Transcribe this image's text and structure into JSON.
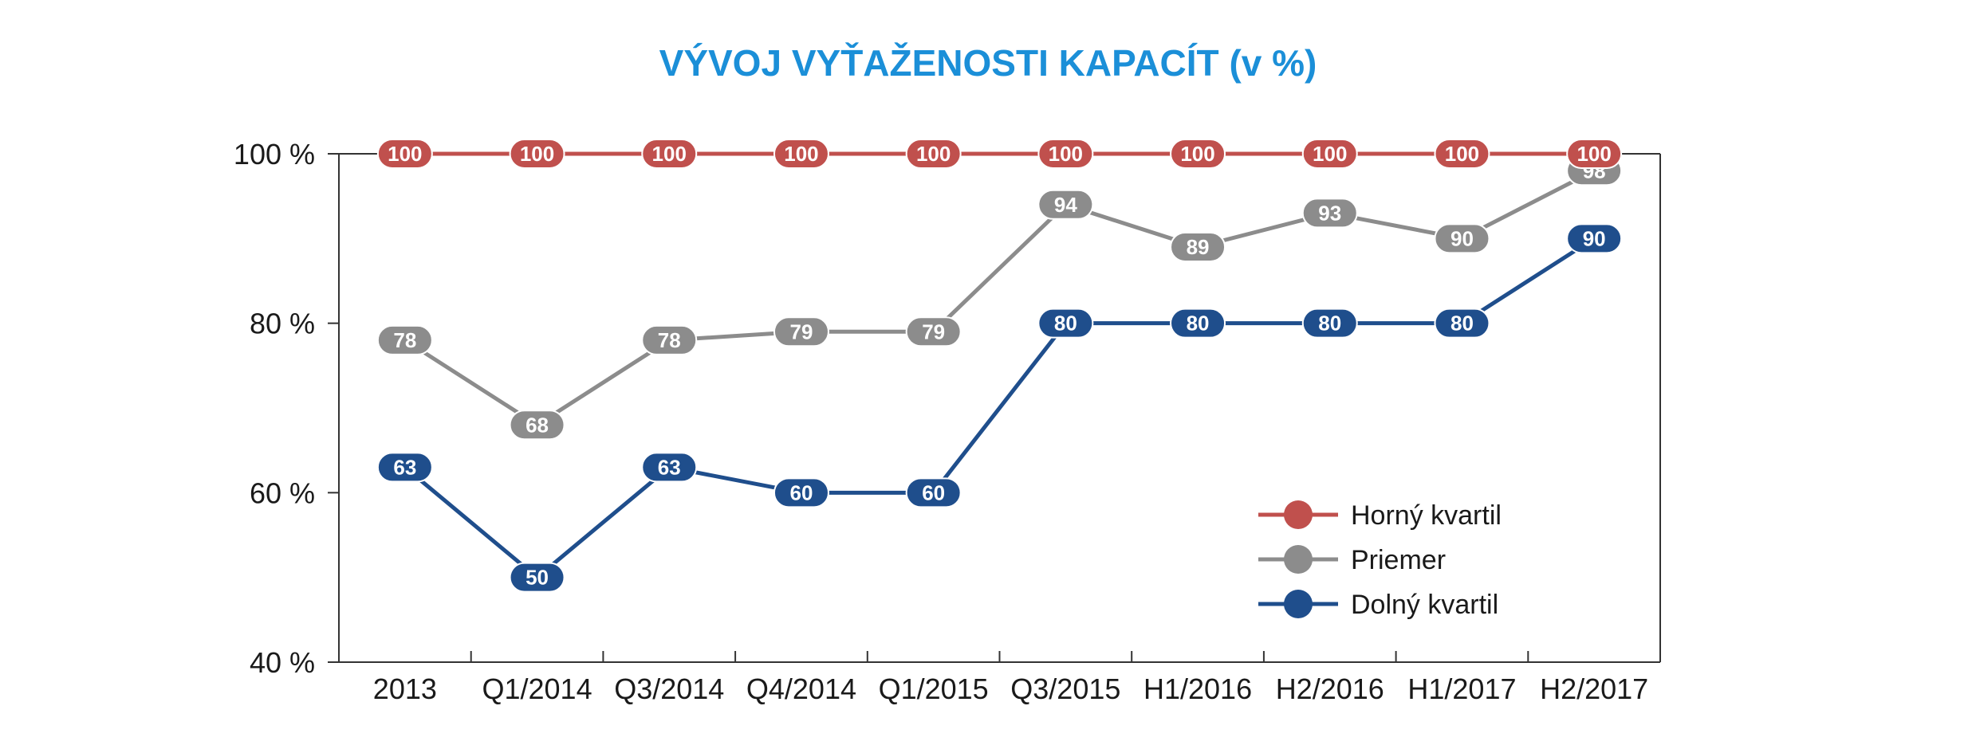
{
  "chart_data": {
    "type": "line",
    "title": "VÝVOJ VYŤAŽENOSTI KAPACÍT (v %)",
    "xlabel": "",
    "ylabel": "",
    "categories": [
      "2013",
      "Q1/2014",
      "Q3/2014",
      "Q4/2014",
      "Q1/2015",
      "Q3/2015",
      "H1/2016",
      "H2/2016",
      "H1/2017",
      "H2/2017"
    ],
    "ylim": [
      40,
      100
    ],
    "yticks": [
      {
        "value": 40,
        "label": "40 %"
      },
      {
        "value": 60,
        "label": "60 %"
      },
      {
        "value": 80,
        "label": "80 %"
      },
      {
        "value": 100,
        "label": "100 %"
      }
    ],
    "grid": false,
    "legend_position": "bottom-right",
    "title_color": "#1b8fd8",
    "series": [
      {
        "name": "Horný kvartil",
        "color": "#c0504d",
        "values": [
          100,
          100,
          100,
          100,
          100,
          100,
          100,
          100,
          100,
          100
        ]
      },
      {
        "name": "Priemer",
        "color": "#8c8c8c",
        "values": [
          78,
          68,
          78,
          79,
          79,
          94,
          89,
          93,
          90,
          98
        ]
      },
      {
        "name": "Dolný kvartil",
        "color": "#1f4e8c",
        "values": [
          63,
          50,
          63,
          60,
          60,
          80,
          80,
          80,
          80,
          90
        ]
      }
    ]
  }
}
